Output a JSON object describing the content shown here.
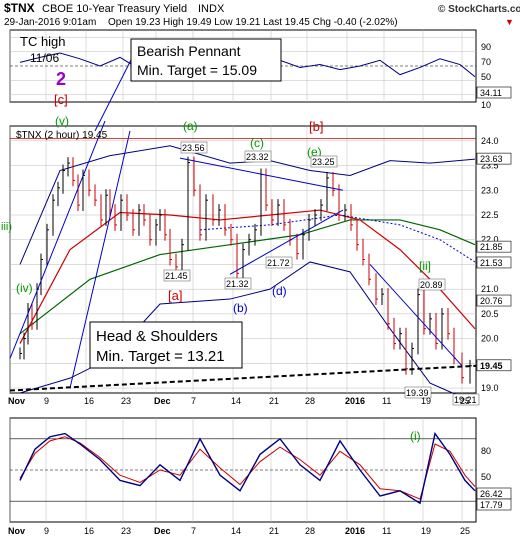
{
  "header": {
    "symbol": "$TNX",
    "name": "CBOE 10-Year Treasury Yield",
    "exchange": "INDX",
    "date_time": "29-Jan-2016 9:01am",
    "quote": "Open 19.23  High 19.49  Low 19.21  Last 19.45  Chg -0.40 (-2.02%)",
    "quote_arrow": "▼",
    "brand": "© StockCharts.com"
  },
  "colors": {
    "price_bar": "#000000",
    "down_bar": "#cc0000",
    "ema_red": "#cc0000",
    "ema_green": "#006600",
    "bollinger": "#000080",
    "blue_line": "#0000cc",
    "green_label": "#009900",
    "red_label": "#cc0000",
    "purple": "#9900cc"
  },
  "top_panel": {
    "axis_labels": [
      "90",
      "70",
      "50",
      "30",
      "10"
    ],
    "value_box": "34.11",
    "label_tc_high": "TC high",
    "label_date": "11/06",
    "label_wave2": "2",
    "label_c": "[c]"
  },
  "annotations": {
    "bearish_pennant_title": "Bearish Pennant",
    "bearish_pennant_target": "Min. Target = 15.09",
    "hs_title": "Head & Shoulders",
    "hs_target": "Min. Target = 13.21",
    "legend": "$TNX (2 hour) 19.45",
    "wave_labels": [
      {
        "text": "(v)",
        "color": "green"
      },
      {
        "text": "iii)",
        "color": "green"
      },
      {
        "text": "(iv)",
        "color": "green"
      },
      {
        "text": "(a)",
        "color": "green"
      },
      {
        "text": "(c)",
        "color": "green"
      },
      {
        "text": "(e)",
        "color": "green"
      },
      {
        "text": "[b]",
        "color": "red"
      },
      {
        "text": "[a]",
        "color": "red"
      },
      {
        "text": "(b)",
        "color": "blue"
      },
      {
        "text": "(d)",
        "color": "blue"
      },
      {
        "text": "[ii]",
        "color": "green"
      }
    ],
    "price_tags": [
      "23.56",
      "23.32",
      "23.25",
      "21.45",
      "21.32",
      "21.72",
      "20.89",
      "19.39",
      "19.21"
    ]
  },
  "bottom_panel": {
    "axis_labels": [
      "80",
      "50",
      "20"
    ],
    "value_boxes": [
      "26.42",
      "17.79"
    ],
    "wave_label": "(i)"
  },
  "chart_data": {
    "type": "line",
    "title": "$TNX CBOE 10-Year Treasury Yield INDX",
    "series_label": "$TNX (2 hour) 19.45",
    "x_tick_labels": [
      "Nov",
      "9",
      "16",
      "23",
      "Dec",
      "7",
      "14",
      "21",
      "28",
      "2016",
      "11",
      "19",
      "25"
    ],
    "y_tick_labels": [
      "24.0",
      "23.5",
      "23.0",
      "22.5",
      "22.0",
      "21.5",
      "21.0",
      "20.5",
      "20.0",
      "19.5",
      "19.0"
    ],
    "ylim": [
      18.9,
      24.3
    ],
    "x_positions": [
      0,
      36,
      76,
      113,
      146,
      183,
      223,
      261,
      297,
      337,
      374,
      413,
      452
    ],
    "price": [
      19.7,
      20.0,
      20.6,
      20.3,
      21.0,
      21.6,
      22.2,
      22.8,
      23.05,
      23.4,
      23.55,
      23.2,
      22.7,
      23.3,
      23.0,
      22.8,
      22.4,
      22.9,
      22.6,
      22.3,
      22.8,
      22.5,
      22.2,
      22.6,
      22.4,
      22.0,
      22.3,
      22.5,
      22.1,
      21.6,
      21.45,
      21.9,
      23.56,
      23.0,
      22.1,
      22.8,
      22.4,
      22.6,
      22.2,
      22.0,
      21.32,
      21.8,
      22.0,
      22.2,
      23.32,
      22.7,
      22.4,
      22.7,
      22.3,
      22.0,
      21.72,
      22.1,
      22.4,
      22.5,
      22.7,
      23.25,
      23.0,
      22.5,
      22.6,
      22.3,
      21.9,
      21.6,
      21.2,
      20.8,
      20.9,
      20.3,
      19.9,
      20.1,
      19.39,
      19.8,
      20.89,
      20.2,
      20.4,
      19.9,
      20.5,
      20.1,
      19.6,
      19.21,
      19.45
    ],
    "price_x": [
      10,
      14,
      18,
      22,
      27,
      31,
      37,
      43,
      48,
      53,
      58,
      63,
      68,
      73,
      79,
      85,
      91,
      96,
      100,
      105,
      111,
      117,
      123,
      129,
      134,
      140,
      146,
      150,
      155,
      160,
      166,
      172,
      178,
      184,
      190,
      196,
      203,
      209,
      215,
      221,
      227,
      233,
      239,
      245,
      251,
      256,
      262,
      268,
      274,
      280,
      287,
      293,
      299,
      305,
      311,
      317,
      323,
      329,
      335,
      341,
      347,
      353,
      359,
      366,
      372,
      378,
      384,
      390,
      396,
      402,
      408,
      414,
      420,
      426,
      432,
      438,
      444,
      452,
      460
    ],
    "ema_red_x": [
      10,
      60,
      110,
      160,
      210,
      260,
      310,
      350,
      390,
      430,
      465
    ],
    "ema_red": [
      19.9,
      21.8,
      22.55,
      22.5,
      22.4,
      22.5,
      22.6,
      22.4,
      21.8,
      21.0,
      20.2
    ],
    "ema_green_x": [
      10,
      80,
      150,
      220,
      290,
      340,
      390,
      430,
      465
    ],
    "ema_green": [
      20.1,
      21.2,
      21.7,
      21.9,
      22.1,
      22.4,
      22.4,
      22.2,
      21.9
    ],
    "ema_blue_dot_x": [
      190,
      260,
      330,
      390,
      430,
      465
    ],
    "ema_blue_dot": [
      22.2,
      22.3,
      22.5,
      22.3,
      22.0,
      21.55
    ],
    "bb_upper_x": [
      10,
      50,
      100,
      160,
      220,
      260,
      300,
      340,
      380,
      420,
      465
    ],
    "bb_upper": [
      21.5,
      23.4,
      23.7,
      23.9,
      23.55,
      23.6,
      23.4,
      23.3,
      23.6,
      23.55,
      23.63
    ],
    "bb_lower_x": [
      10,
      60,
      100,
      150,
      220,
      260,
      300,
      340,
      380,
      420,
      465
    ],
    "bb_lower": [
      18.9,
      19.2,
      19.6,
      20.7,
      20.8,
      21.0,
      21.55,
      21.35,
      20.2,
      19.1,
      18.7
    ],
    "rsi_x": [
      10,
      25,
      40,
      55,
      70,
      90,
      110,
      130,
      150,
      170,
      190,
      210,
      230,
      250,
      270,
      290,
      310,
      330,
      350,
      370,
      390,
      410,
      425,
      440,
      455,
      465
    ],
    "rsi": [
      40,
      70,
      82,
      85,
      75,
      60,
      40,
      35,
      55,
      40,
      80,
      45,
      30,
      65,
      80,
      55,
      40,
      78,
      50,
      25,
      30,
      18,
      85,
      65,
      40,
      30
    ],
    "rsi_signal": [
      42,
      66,
      78,
      82,
      76,
      62,
      45,
      38,
      50,
      45,
      70,
      52,
      36,
      58,
      72,
      60,
      45,
      68,
      55,
      32,
      30,
      22,
      75,
      68,
      45,
      34
    ],
    "top_series_x": [
      10,
      30,
      50,
      70,
      90,
      110,
      130,
      150,
      170,
      190,
      210,
      230,
      250,
      270,
      290,
      310,
      330,
      350,
      370,
      390,
      410,
      430,
      450,
      465
    ],
    "top_series": [
      55,
      62,
      68,
      60,
      50,
      62,
      45,
      58,
      55,
      40,
      55,
      62,
      50,
      58,
      48,
      52,
      45,
      50,
      58,
      38,
      48,
      60,
      52,
      35
    ]
  }
}
